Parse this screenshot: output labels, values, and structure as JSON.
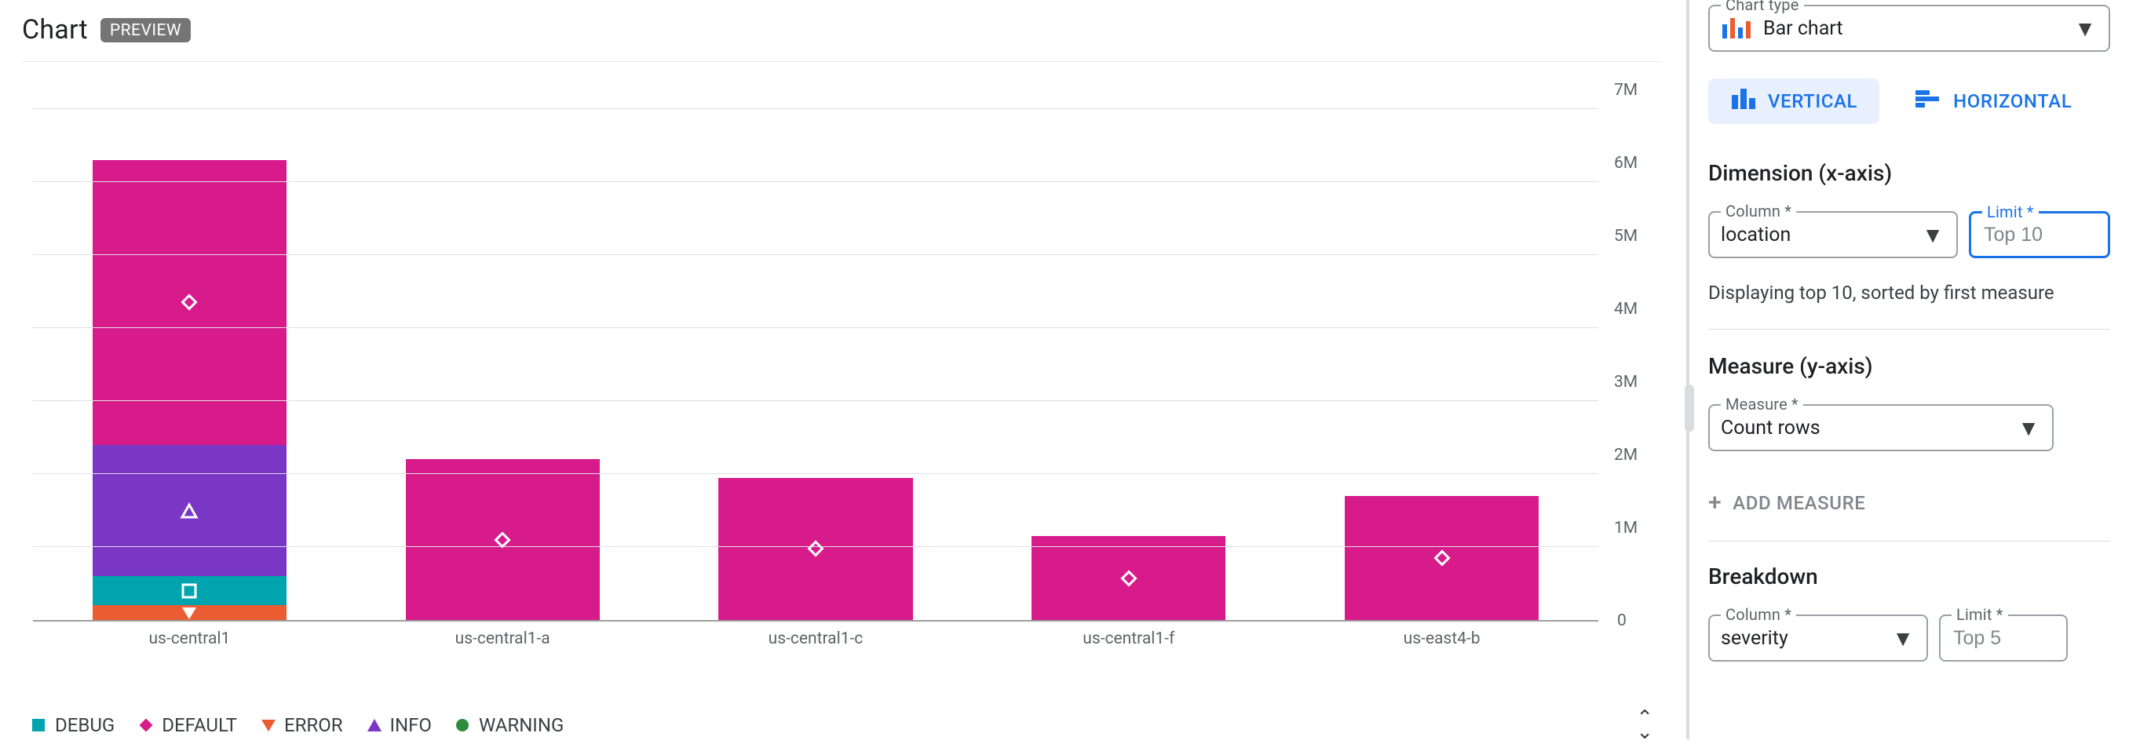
{
  "header": {
    "title": "Chart",
    "badge": "PREVIEW"
  },
  "chart": {
    "type": "bar",
    "yaxis": {
      "min": 0,
      "max": 7000000,
      "tick_step": 1000000,
      "ticks": [
        "1M",
        "2M",
        "3M",
        "4M",
        "5M",
        "6M",
        "7M"
      ]
    },
    "categories": [
      "us-central1",
      "us-central1-a",
      "us-central1-c",
      "us-central1-f",
      "us-east4-b"
    ],
    "series": [
      {
        "key": "DEBUG",
        "color": "#00a4ae",
        "marker": "square"
      },
      {
        "key": "DEFAULT",
        "color": "#d81b8b",
        "marker": "diamond"
      },
      {
        "key": "ERROR",
        "color": "#ec5c33",
        "marker": "tri-down"
      },
      {
        "key": "INFO",
        "color": "#7a36c4",
        "marker": "tri-up"
      },
      {
        "key": "WARNING",
        "color": "#2e8b3b",
        "marker": "circle"
      }
    ],
    "data": [
      {
        "label": "us-central1",
        "segments": [
          {
            "series": "ERROR",
            "value": 200000
          },
          {
            "series": "DEBUG",
            "value": 400000
          },
          {
            "series": "INFO",
            "value": 1800000
          },
          {
            "series": "DEFAULT",
            "value": 3900000
          }
        ]
      },
      {
        "label": "us-central1-a",
        "segments": [
          {
            "series": "DEFAULT",
            "value": 2200000
          }
        ]
      },
      {
        "label": "us-central1-c",
        "segments": [
          {
            "series": "DEFAULT",
            "value": 1950000
          }
        ]
      },
      {
        "label": "us-central1-f",
        "segments": [
          {
            "series": "DEFAULT",
            "value": 1150000
          }
        ]
      },
      {
        "label": "us-east4-b",
        "segments": [
          {
            "series": "DEFAULT",
            "value": 1700000
          }
        ]
      }
    ],
    "background": "#ffffff",
    "grid_color": "#e0e0e0"
  },
  "controls": {
    "chart_type": {
      "label": "Chart type",
      "value": "Bar chart"
    },
    "orientation": {
      "vertical": "VERTICAL",
      "horizontal": "HORIZONTAL",
      "active": "vertical"
    },
    "dimension": {
      "title": "Dimension (x-axis)",
      "column": {
        "label": "Column *",
        "value": "location"
      },
      "limit": {
        "label": "Limit *",
        "placeholder": "Top 10",
        "value": ""
      },
      "hint": "Displaying top 10, sorted by first measure"
    },
    "measure": {
      "title": "Measure (y-axis)",
      "field": {
        "label": "Measure *",
        "value": "Count rows"
      },
      "add_label": "ADD MEASURE"
    },
    "breakdown": {
      "title": "Breakdown",
      "column": {
        "label": "Column *",
        "value": "severity"
      },
      "limit": {
        "label": "Limit *",
        "placeholder": "Top 5",
        "value": ""
      }
    }
  }
}
